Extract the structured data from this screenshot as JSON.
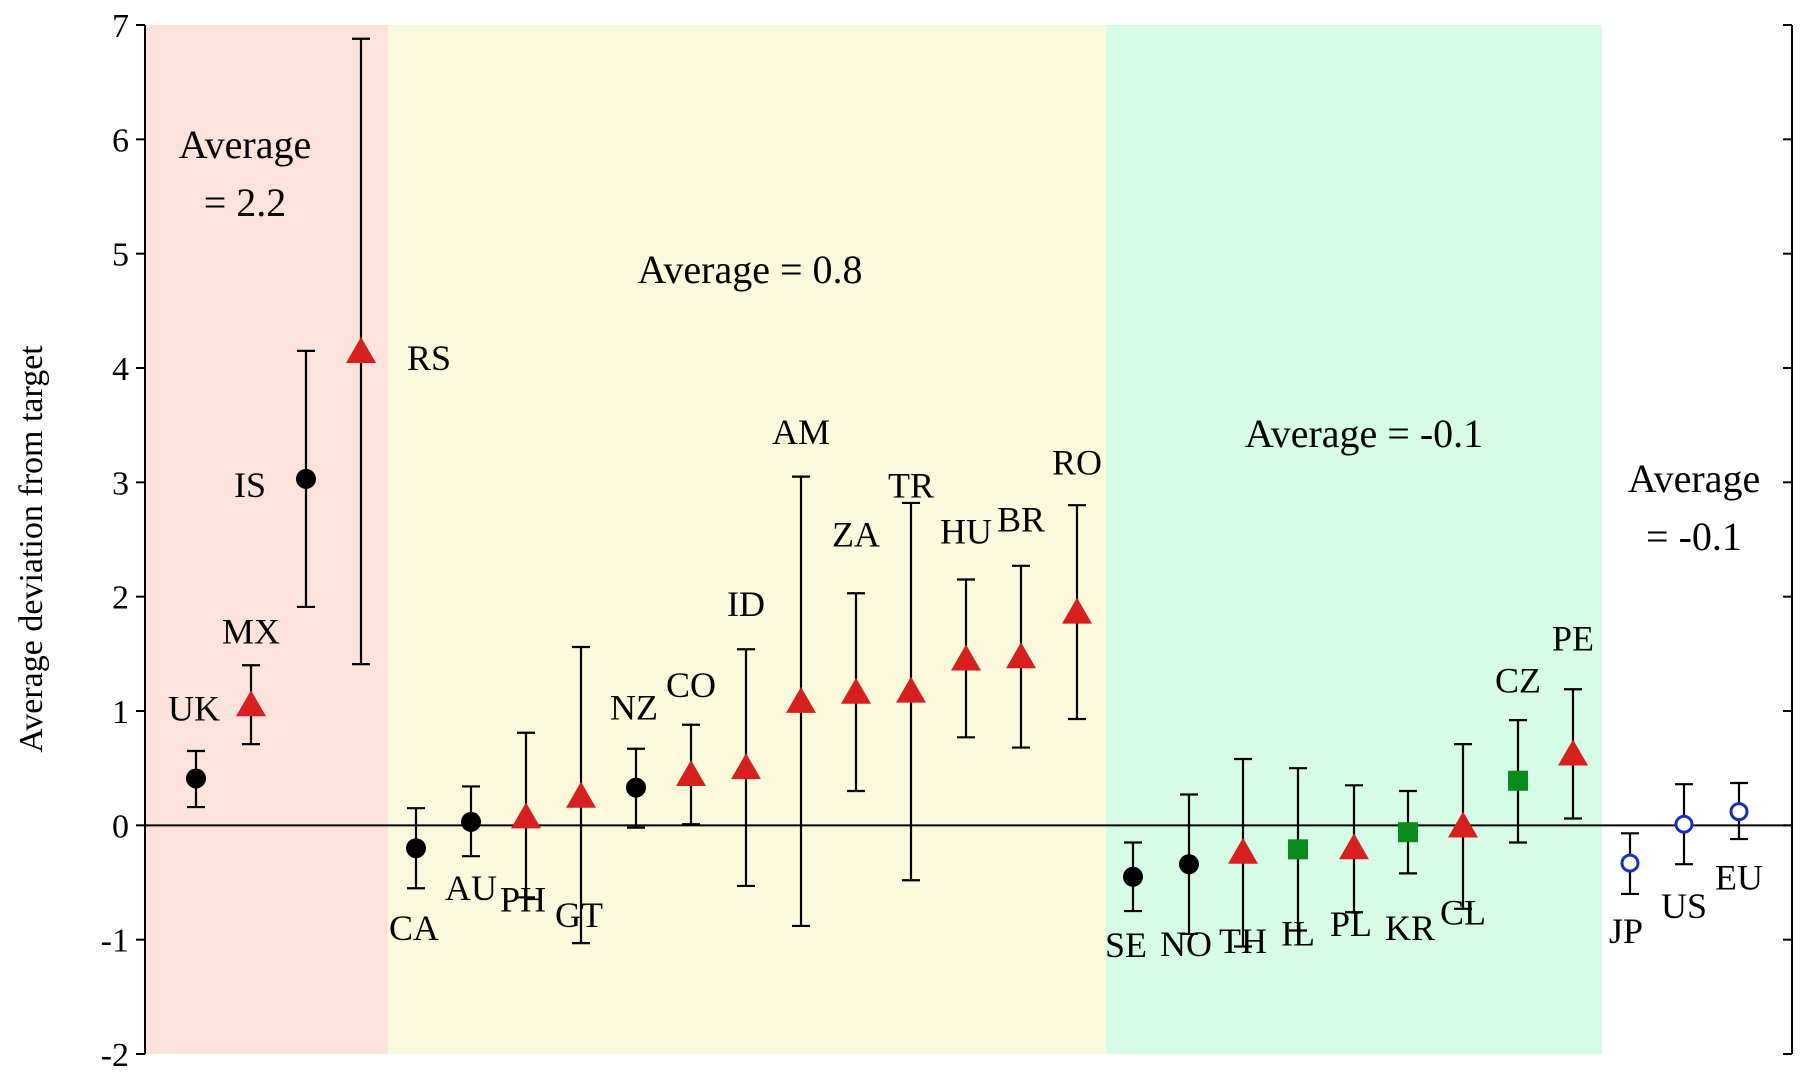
{
  "chart_data": {
    "type": "scatter",
    "ylabel": "Average deviation from target",
    "ylim": [
      -2,
      7
    ],
    "yticks": [
      "7",
      "6",
      "5",
      "4",
      "3",
      "2",
      "1",
      "0",
      "-1",
      "-2"
    ],
    "grid": false,
    "colors": {
      "group1_bg": "#fde3dc",
      "group2_bg": "#fbf9dc",
      "group3_bg": "#d6fbe6",
      "circle": "#000000",
      "triangle": "#d62020",
      "square": "#0a8a1a",
      "open_circle": "#1a2fb8"
    },
    "groups": [
      {
        "average_text": "Average = 2.2",
        "line1": "Average",
        "line2": "= 2.2",
        "color": "#fde3dc"
      },
      {
        "average_text": "Average = 0.8",
        "line1": "Average = 0.8",
        "line2": "",
        "color": "#fbf9dc"
      },
      {
        "average_text": "Average = -0.1",
        "line1": "Average = -0.1",
        "line2": "",
        "color": "#d6fbe6"
      },
      {
        "average_text": "Average = -0.1",
        "line1": "Average",
        "line2": "= -0.1",
        "color": "#ffffff"
      }
    ],
    "points": [
      {
        "label": "UK",
        "group": 0,
        "marker": "circle",
        "value": 0.41,
        "low": 0.16,
        "high": 0.65,
        "label_pos": "above-left"
      },
      {
        "label": "MX",
        "group": 0,
        "marker": "triangle",
        "value": 1.05,
        "low": 0.71,
        "high": 1.4,
        "label_pos": "above"
      },
      {
        "label": "IS",
        "group": 0,
        "marker": "circle",
        "value": 3.03,
        "low": 1.91,
        "high": 4.15,
        "label_pos": "left"
      },
      {
        "label": "RS",
        "group": 0,
        "marker": "triangle",
        "value": 4.14,
        "low": 1.41,
        "high": 6.88,
        "label_pos": "right"
      },
      {
        "label": "CA",
        "group": 1,
        "marker": "circle",
        "value": -0.2,
        "low": -0.55,
        "high": 0.15,
        "label_pos": "below"
      },
      {
        "label": "AU",
        "group": 1,
        "marker": "circle",
        "value": 0.03,
        "low": -0.27,
        "high": 0.34,
        "label_pos": "below"
      },
      {
        "label": "PH",
        "group": 1,
        "marker": "triangle",
        "value": 0.07,
        "low": -0.63,
        "high": 0.81,
        "label_pos": "below"
      },
      {
        "label": "GT",
        "group": 1,
        "marker": "triangle",
        "value": 0.25,
        "low": -1.03,
        "high": 1.56,
        "label_pos": "below"
      },
      {
        "label": "NZ",
        "group": 1,
        "marker": "circle",
        "value": 0.33,
        "low": -0.02,
        "high": 0.67,
        "label_pos": "above-left"
      },
      {
        "label": "CO",
        "group": 1,
        "marker": "triangle",
        "value": 0.44,
        "low": 0.01,
        "high": 0.88,
        "label_pos": "above"
      },
      {
        "label": "ID",
        "group": 1,
        "marker": "triangle",
        "value": 0.5,
        "low": -0.53,
        "high": 1.54,
        "label_pos": "above"
      },
      {
        "label": "AM",
        "group": 1,
        "marker": "triangle",
        "value": 1.08,
        "low": -0.88,
        "high": 3.05,
        "label_pos": "above"
      },
      {
        "label": "ZA",
        "group": 1,
        "marker": "triangle",
        "value": 1.16,
        "low": 0.3,
        "high": 2.03,
        "label_pos": "above"
      },
      {
        "label": "TR",
        "group": 1,
        "marker": "triangle",
        "value": 1.17,
        "low": -0.48,
        "high": 2.82,
        "label_pos": "above"
      },
      {
        "label": "HU",
        "group": 1,
        "marker": "triangle",
        "value": 1.45,
        "low": 0.77,
        "high": 2.15,
        "label_pos": "above"
      },
      {
        "label": "BR",
        "group": 1,
        "marker": "triangle",
        "value": 1.47,
        "low": 0.68,
        "high": 2.27,
        "label_pos": "above"
      },
      {
        "label": "RO",
        "group": 1,
        "marker": "triangle",
        "value": 1.86,
        "low": 0.93,
        "high": 2.8,
        "label_pos": "above"
      },
      {
        "label": "SE",
        "group": 2,
        "marker": "circle",
        "value": -0.45,
        "low": -0.75,
        "high": -0.15,
        "label_pos": "below"
      },
      {
        "label": "NO",
        "group": 2,
        "marker": "circle",
        "value": -0.34,
        "low": -0.95,
        "high": 0.27,
        "label_pos": "below"
      },
      {
        "label": "TH",
        "group": 2,
        "marker": "triangle",
        "value": -0.24,
        "low": -1.06,
        "high": 0.58,
        "label_pos": "below"
      },
      {
        "label": "IL",
        "group": 2,
        "marker": "square",
        "value": -0.21,
        "low": -0.92,
        "high": 0.5,
        "label_pos": "below"
      },
      {
        "label": "PL",
        "group": 2,
        "marker": "triangle",
        "value": -0.2,
        "low": -0.76,
        "high": 0.35,
        "label_pos": "below"
      },
      {
        "label": "KR",
        "group": 2,
        "marker": "square",
        "value": -0.06,
        "low": -0.42,
        "high": 0.3,
        "label_pos": "below"
      },
      {
        "label": "CL",
        "group": 2,
        "marker": "triangle",
        "value": -0.01,
        "low": -0.73,
        "high": 0.71,
        "label_pos": "below"
      },
      {
        "label": "CZ",
        "group": 2,
        "marker": "square",
        "value": 0.39,
        "low": -0.15,
        "high": 0.92,
        "label_pos": "above"
      },
      {
        "label": "PE",
        "group": 2,
        "marker": "triangle",
        "value": 0.62,
        "low": 0.06,
        "high": 1.19,
        "label_pos": "above"
      },
      {
        "label": "JP",
        "group": 3,
        "marker": "open_circle",
        "value": -0.33,
        "low": -0.6,
        "high": -0.07,
        "label_pos": "below"
      },
      {
        "label": "US",
        "group": 3,
        "marker": "open_circle",
        "value": 0.01,
        "low": -0.34,
        "high": 0.36,
        "label_pos": "below"
      },
      {
        "label": "EU",
        "group": 3,
        "marker": "open_circle",
        "value": 0.12,
        "low": -0.12,
        "high": 0.37,
        "label_pos": "below"
      }
    ]
  }
}
